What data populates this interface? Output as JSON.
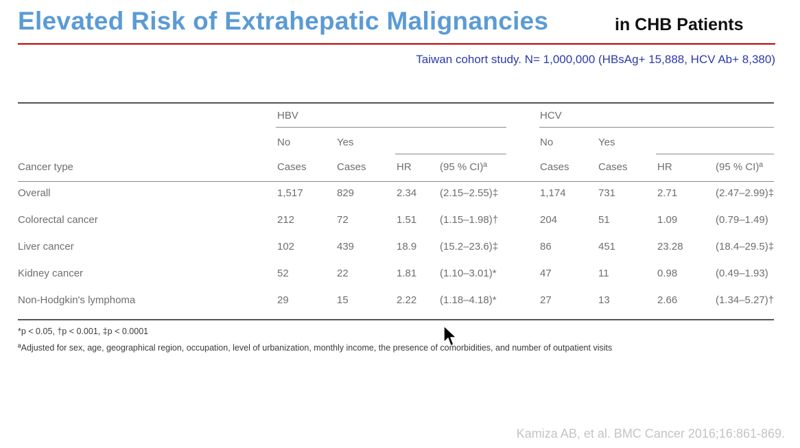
{
  "title": {
    "main": "Elevated Risk of Extrahepatic Malignancies",
    "sub": "in CHB Patients"
  },
  "study_line": "Taiwan cohort study. N= 1,000,000 (HBsAg+ 15,888, HCV Ab+ 8,380)",
  "table": {
    "groups": [
      "HBV",
      "HCV"
    ],
    "sub_top": [
      "No",
      "Yes",
      "No",
      "Yes"
    ],
    "headers": [
      "Cancer type",
      "Cases",
      "Cases",
      "HR",
      "(95 % CI)ª",
      "Cases",
      "Cases",
      "HR",
      "(95 % CI)ª"
    ],
    "rows": [
      [
        "Overall",
        "1,517",
        "829",
        "2.34",
        "(2.15–2.55)‡",
        "1,174",
        "731",
        "2.71",
        "(2.47–2.99)‡"
      ],
      [
        "Colorectal cancer",
        "212",
        "72",
        "1.51",
        "(1.15–1.98)†",
        "204",
        "51",
        "1.09",
        "(0.79–1.49)"
      ],
      [
        "Liver cancer",
        "102",
        "439",
        "18.9",
        "(15.2–23.6)‡",
        "86",
        "451",
        "23.28",
        "(18.4–29.5)‡"
      ],
      [
        "Kidney cancer",
        "52",
        "22",
        "1.81",
        "(1.10–3.01)*",
        "47",
        "11",
        "0.98",
        "(0.49–1.93)"
      ],
      [
        "Non-Hodgkin's lymphoma",
        "29",
        "15",
        "2.22",
        "(1.18–4.18)*",
        "27",
        "13",
        "2.66",
        "(1.34–5.27)†"
      ]
    ]
  },
  "footnotes": {
    "sig": "*p < 0.05, †p < 0.001, ‡p < 0.0001",
    "adj": "ªAdjusted for sex, age, geographical region, occupation, level of urbanization, monthly income, the presence of comorbidities, and number of outpatient visits"
  },
  "citation": "Kamiza AB, et al. BMC Cancer 2016;16:861-869."
}
